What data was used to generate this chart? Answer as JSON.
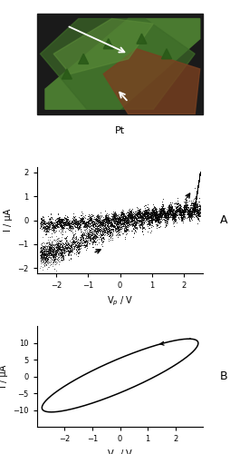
{
  "fig_width": 2.55,
  "fig_height": 5.0,
  "dpi": 100,
  "plotA_title": "A",
  "plotA_xlabel": "V$_p$ / V",
  "plotA_ylabel": "I / μA",
  "plotA_xlim": [
    -2.6,
    2.6
  ],
  "plotA_ylim": [
    -2.2,
    2.2
  ],
  "plotA_xticks": [
    -2,
    -1,
    0,
    1,
    2
  ],
  "plotA_yticks": [
    -2,
    -1,
    0,
    1,
    2
  ],
  "plotB_title": "B",
  "plotB_xlabel": "V$_p$ / V",
  "plotB_ylabel": "I / μA",
  "plotB_xlim": [
    -3,
    3
  ],
  "plotB_ylim": [
    -15,
    15
  ],
  "plotB_xticks": [
    -2,
    -1,
    0,
    1,
    2
  ],
  "plotB_yticks": [
    -10,
    -5,
    0,
    5,
    10
  ],
  "line_color": "#000000",
  "font_size": 7,
  "photo_bg": "#1a1a1a",
  "photo_green1": "#4a7a30",
  "photo_green2": "#3d6b28",
  "photo_brown": "#7a4020",
  "photo_green3": "#5a8a38",
  "pt_label_color_white": "#ffffff",
  "pt_label_color_black": "#000000"
}
